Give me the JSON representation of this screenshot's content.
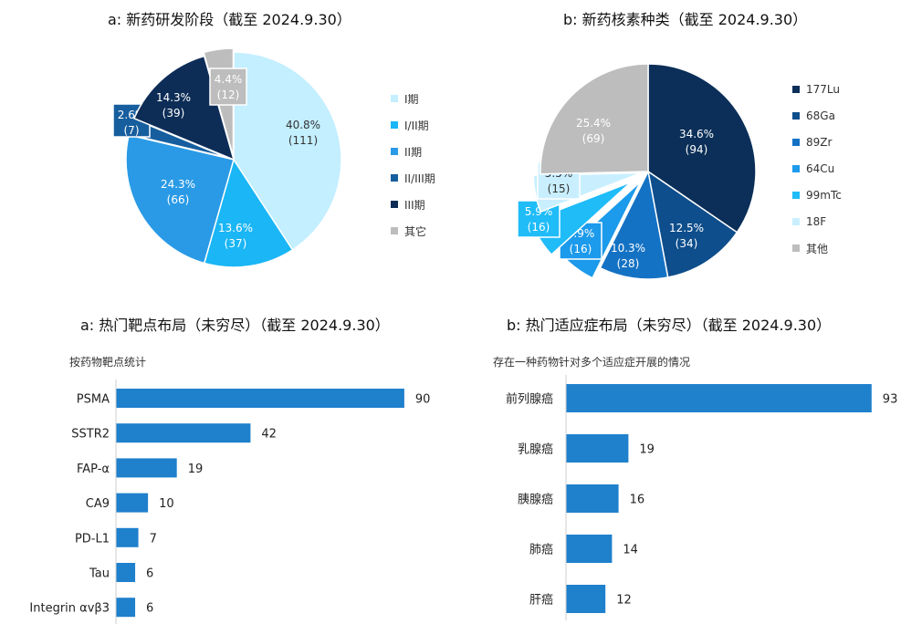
{
  "chart_data": [
    {
      "type": "pie",
      "title": "a: 新药研发阶段（截至 2024.9.30）",
      "slices": [
        {
          "label": "I期",
          "pct": "40.8%",
          "count": "(111)",
          "value": 111,
          "color": "#c3efff"
        },
        {
          "label": "I/II期",
          "pct": "13.6%",
          "count": "(37)",
          "value": 37,
          "color": "#1ab6f5"
        },
        {
          "label": "II期",
          "pct": "24.3%",
          "count": "(66)",
          "value": 66,
          "color": "#2a9ae6"
        },
        {
          "label": "II/III期",
          "pct": "2.6%",
          "count": "(7)",
          "value": 7,
          "color": "#175e9e"
        },
        {
          "label": "III期",
          "pct": "14.3%",
          "count": "(39)",
          "value": 39,
          "color": "#0d2d57"
        },
        {
          "label": "其它",
          "pct": "4.4%",
          "count": "(12)",
          "value": 12,
          "color": "#bdbdbd"
        }
      ],
      "legend_position": "right"
    },
    {
      "type": "pie",
      "title": "b: 新药核素种类（截至 2024.9.30）",
      "slices": [
        {
          "label": "177Lu",
          "pct": "34.6%",
          "count": "(94)",
          "value": 94,
          "color": "#0b2f58"
        },
        {
          "label": "68Ga",
          "pct": "12.5%",
          "count": "(34)",
          "value": 34,
          "color": "#0e4e8c"
        },
        {
          "label": "89Zr",
          "pct": "10.3%",
          "count": "(28)",
          "value": 28,
          "color": "#1472c4"
        },
        {
          "label": "64Cu",
          "pct": "5.9%",
          "count": "(16)",
          "value": 16,
          "color": "#1c9aeb"
        },
        {
          "label": "99mTc",
          "pct": "5.9%",
          "count": "(16)",
          "value": 16,
          "color": "#1fbcf8"
        },
        {
          "label": "18F",
          "pct": "5.5%",
          "count": "(15)",
          "value": 15,
          "color": "#c9efff"
        },
        {
          "label": "其他",
          "pct": "25.4%",
          "count": "(69)",
          "value": 69,
          "color": "#bdbdbd"
        }
      ],
      "legend_position": "right"
    },
    {
      "type": "bar",
      "orientation": "horizontal",
      "title": "a: 热门靶点布局（未穷尽）（截至 2024.9.30）",
      "subtitle": "按药物靶点统计",
      "categories": [
        "PSMA",
        "SSTR2",
        "FAP-α",
        "CA9",
        "PD-L1",
        "Tau",
        "Integrin αvβ3"
      ],
      "values": [
        90,
        42,
        19,
        10,
        7,
        6,
        6
      ],
      "color": "#1f80cc"
    },
    {
      "type": "bar",
      "orientation": "horizontal",
      "title": "b: 热门适应症布局（未穷尽）（截至 2024.9.30）",
      "subtitle": "存在一种药物针对多个适应症开展的情况",
      "categories": [
        "前列腺癌",
        "乳腺癌",
        "胰腺癌",
        "肺癌",
        "肝癌"
      ],
      "values": [
        93,
        19,
        16,
        14,
        12
      ],
      "color": "#1f80cc"
    }
  ]
}
